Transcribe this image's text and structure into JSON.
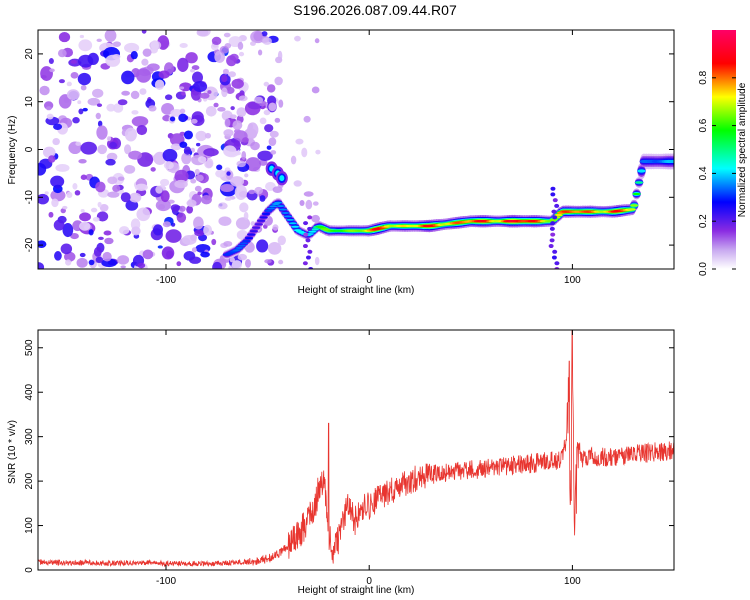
{
  "title": "S196.2026.087.09.44.R07",
  "chart_data": [
    {
      "type": "heatmap",
      "title": "S196.2026.087.09.44.R07",
      "xlabel": "Height of straight line (km)",
      "ylabel": "Frequency (Hz)",
      "xlim": [
        -163,
        150
      ],
      "ylim": [
        -25,
        25
      ],
      "x_ticks": [
        -100,
        0,
        100
      ],
      "y_ticks": [
        20,
        10,
        0,
        -10,
        -20
      ],
      "colorbar": {
        "label": "Normalized spectral amplitude",
        "range": [
          0,
          1
        ],
        "ticks": [
          0.0,
          0.2,
          0.4,
          0.6,
          0.8
        ],
        "colormap": [
          "#ffffff",
          "#8a2be2",
          "#0000ff",
          "#00ffff",
          "#00ff00",
          "#ffff00",
          "#ff0000",
          "#ff0066"
        ]
      },
      "noise_region_x": [
        -163,
        -65
      ],
      "ridge": {
        "x": [
          -70,
          -65,
          -60,
          -55,
          -50,
          -45,
          -40,
          -35,
          -30,
          -25,
          -20,
          -15,
          -10,
          -5,
          0,
          10,
          20,
          30,
          40,
          50,
          60,
          70,
          80,
          90,
          95,
          100,
          110,
          120,
          130,
          135,
          140,
          145,
          150
        ],
        "freq": [
          -22,
          -21,
          -19,
          -16,
          -13,
          -11,
          -14,
          -17,
          -18,
          -16,
          -17,
          -17,
          -17,
          -17,
          -17,
          -16,
          -16,
          -16,
          -15.5,
          -15,
          -15,
          -15,
          -15,
          -15,
          -13,
          -13,
          -13,
          -13,
          -12.5,
          -2.5,
          -2.5,
          -2.5,
          -2.5
        ],
        "amplitude": [
          0.35,
          0.4,
          0.35,
          0.3,
          0.35,
          0.4,
          0.45,
          0.5,
          0.55,
          0.6,
          0.65,
          0.7,
          0.75,
          0.8,
          0.85,
          0.9,
          0.85,
          0.9,
          0.95,
          0.9,
          0.95,
          1.0,
          0.95,
          0.9,
          0.85,
          0.9,
          0.95,
          0.9,
          0.85,
          0.4,
          0.45,
          0.4,
          0.4
        ]
      },
      "side_feature": {
        "x": [
          -48,
          -45,
          -43
        ],
        "freq": [
          -4,
          -5,
          -6
        ]
      }
    },
    {
      "type": "line",
      "xlabel": "Height of straight line (km)",
      "ylabel": "SNR (10 * v/v)",
      "xlim": [
        -163,
        150
      ],
      "ylim": [
        0,
        540
      ],
      "x_ticks": [
        -100,
        0,
        100
      ],
      "y_ticks": [
        0,
        100,
        200,
        300,
        400,
        500
      ],
      "color": "#e8352f",
      "x": [
        -163,
        -150,
        -140,
        -130,
        -120,
        -110,
        -100,
        -90,
        -80,
        -70,
        -60,
        -50,
        -45,
        -40,
        -35,
        -30,
        -27,
        -25,
        -22,
        -20,
        -18,
        -15,
        -12,
        -10,
        -7,
        -5,
        -2,
        0,
        5,
        10,
        15,
        20,
        25,
        30,
        40,
        50,
        60,
        70,
        80,
        90,
        95,
        97,
        98,
        99,
        100,
        101,
        102,
        105,
        110,
        120,
        130,
        140,
        150
      ],
      "values": [
        18,
        16,
        17,
        15,
        16,
        17,
        14,
        15,
        14,
        16,
        18,
        25,
        35,
        55,
        80,
        110,
        140,
        180,
        200,
        80,
        40,
        70,
        120,
        150,
        110,
        130,
        155,
        140,
        165,
        175,
        190,
        200,
        210,
        215,
        220,
        225,
        230,
        235,
        240,
        245,
        250,
        280,
        440,
        100,
        540,
        60,
        300,
        250,
        255,
        255,
        260,
        265,
        270
      ],
      "spikes": [
        {
          "x": -20,
          "y": 330
        },
        {
          "x": 98.5,
          "y": 470
        },
        {
          "x": 100,
          "y": 540
        }
      ]
    }
  ]
}
